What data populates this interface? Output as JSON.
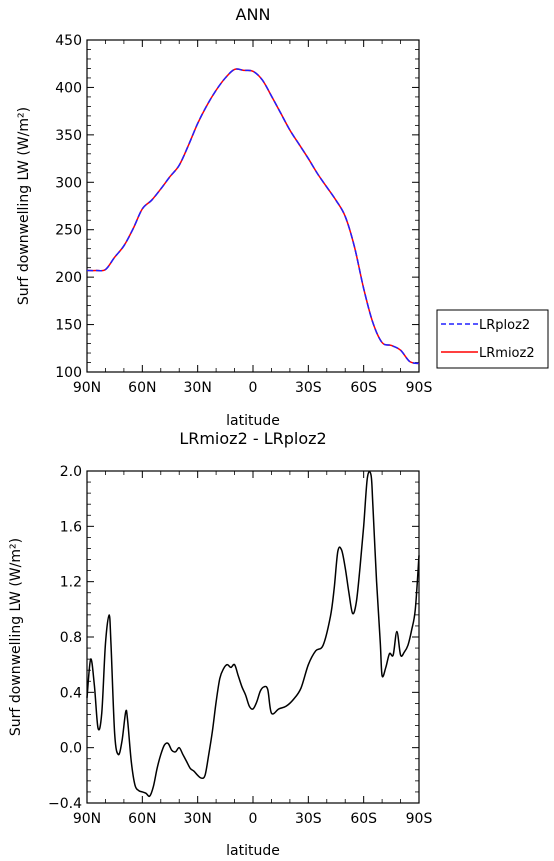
{
  "chart_data": [
    {
      "type": "line",
      "title": "ANN",
      "xlabel": "latitude",
      "ylabel": "Surf downwelling LW (W/m²)",
      "xlim": [
        90,
        -90
      ],
      "ylim": [
        100,
        450
      ],
      "grid": false,
      "legend_position": "right, outside plot",
      "x_ticks": [
        {
          "v": 90,
          "label": "90N"
        },
        {
          "v": 60,
          "label": "60N"
        },
        {
          "v": 30,
          "label": "30N"
        },
        {
          "v": 0,
          "label": "0"
        },
        {
          "v": -30,
          "label": "30S"
        },
        {
          "v": -60,
          "label": "60S"
        },
        {
          "v": -90,
          "label": "90S"
        }
      ],
      "y_ticks": [
        {
          "v": 100,
          "label": "100"
        },
        {
          "v": 150,
          "label": "150"
        },
        {
          "v": 200,
          "label": "200"
        },
        {
          "v": 250,
          "label": "250"
        },
        {
          "v": 300,
          "label": "300"
        },
        {
          "v": 350,
          "label": "350"
        },
        {
          "v": 400,
          "label": "400"
        },
        {
          "v": 450,
          "label": "450"
        }
      ],
      "x": [
        90,
        85,
        80,
        75,
        70,
        65,
        60,
        55,
        50,
        45,
        40,
        35,
        30,
        25,
        20,
        15,
        10,
        5,
        0,
        -5,
        -10,
        -15,
        -20,
        -25,
        -30,
        -35,
        -40,
        -45,
        -50,
        -55,
        -60,
        -65,
        -70,
        -75,
        -80,
        -85,
        -90
      ],
      "series": [
        {
          "name": "LRploz2",
          "color": "#2020ff",
          "dash": "dashed",
          "values": [
            207,
            207,
            208,
            221,
            233,
            251,
            272,
            281,
            293,
            306,
            318,
            339,
            362,
            381,
            397,
            410,
            419,
            418,
            417,
            408,
            391,
            373,
            355,
            340,
            325,
            309,
            295,
            281,
            264,
            232,
            188,
            152,
            131,
            128,
            123,
            111,
            109
          ]
        },
        {
          "name": "LRmioz2",
          "color": "#ff0000",
          "dash": "solid",
          "values": [
            207,
            207,
            208,
            221,
            233,
            251,
            272,
            281,
            293,
            306,
            318,
            339,
            362,
            381,
            397,
            410,
            419,
            418,
            417,
            408,
            391,
            373,
            355,
            340,
            325,
            309,
            295,
            281,
            264,
            232,
            188,
            152,
            131,
            128,
            123,
            111,
            109
          ]
        }
      ]
    },
    {
      "type": "line",
      "title": "LRmioz2 - LRploz2",
      "xlabel": "latitude",
      "ylabel": "Surf downwelling LW (W/m²)",
      "xlim": [
        90,
        -90
      ],
      "ylim": [
        -0.4,
        2.0
      ],
      "grid": false,
      "x_ticks": [
        {
          "v": 90,
          "label": "90N"
        },
        {
          "v": 60,
          "label": "60N"
        },
        {
          "v": 30,
          "label": "30N"
        },
        {
          "v": 0,
          "label": "0"
        },
        {
          "v": -30,
          "label": "30S"
        },
        {
          "v": -60,
          "label": "60S"
        },
        {
          "v": -90,
          "label": "90S"
        }
      ],
      "y_ticks": [
        {
          "v": -0.4,
          "label": "−0.4"
        },
        {
          "v": 0.0,
          "label": "0.0"
        },
        {
          "v": 0.4,
          "label": "0.4"
        },
        {
          "v": 0.8,
          "label": "0.8"
        },
        {
          "v": 1.2,
          "label": "1.2"
        },
        {
          "v": 1.6,
          "label": "1.6"
        },
        {
          "v": 2.0,
          "label": "2.0"
        }
      ],
      "series": [
        {
          "name": "",
          "color": "#000000",
          "dash": "solid",
          "x": [
            90,
            88,
            86,
            84,
            82,
            80,
            78,
            77,
            75,
            73,
            71,
            69,
            68,
            66,
            64,
            62,
            60,
            58,
            56,
            54,
            52,
            50,
            48,
            46,
            44,
            42,
            40,
            38,
            36,
            34,
            32,
            30,
            28,
            26,
            24,
            22,
            20,
            18,
            16,
            14,
            12,
            10,
            8,
            6,
            4,
            2,
            0,
            -2,
            -4,
            -6,
            -8,
            -10,
            -14,
            -18,
            -22,
            -26,
            -30,
            -34,
            -38,
            -42,
            -44,
            -46,
            -48,
            -50,
            -52,
            -54,
            -56,
            -58,
            -60,
            -62,
            -64,
            -65,
            -67,
            -69,
            -70,
            -72,
            -74,
            -76,
            -78,
            -80,
            -82,
            -84,
            -86,
            -88,
            -90
          ],
          "values": [
            0.36,
            0.64,
            0.45,
            0.14,
            0.25,
            0.75,
            0.96,
            0.75,
            0.1,
            -0.05,
            0.05,
            0.26,
            0.2,
            -0.1,
            -0.27,
            -0.31,
            -0.32,
            -0.33,
            -0.35,
            -0.28,
            -0.15,
            -0.05,
            0.02,
            0.03,
            -0.02,
            -0.03,
            0.0,
            -0.05,
            -0.1,
            -0.15,
            -0.17,
            -0.2,
            -0.22,
            -0.2,
            -0.05,
            0.12,
            0.33,
            0.5,
            0.57,
            0.6,
            0.58,
            0.6,
            0.52,
            0.44,
            0.38,
            0.3,
            0.28,
            0.33,
            0.41,
            0.44,
            0.42,
            0.25,
            0.28,
            0.3,
            0.35,
            0.43,
            0.6,
            0.7,
            0.74,
            0.95,
            1.15,
            1.42,
            1.43,
            1.3,
            1.12,
            0.97,
            1.05,
            1.3,
            1.6,
            1.95,
            1.97,
            1.75,
            1.2,
            0.76,
            0.52,
            0.58,
            0.68,
            0.67,
            0.84,
            0.67,
            0.69,
            0.74,
            0.85,
            1.0,
            1.39
          ]
        }
      ]
    }
  ]
}
